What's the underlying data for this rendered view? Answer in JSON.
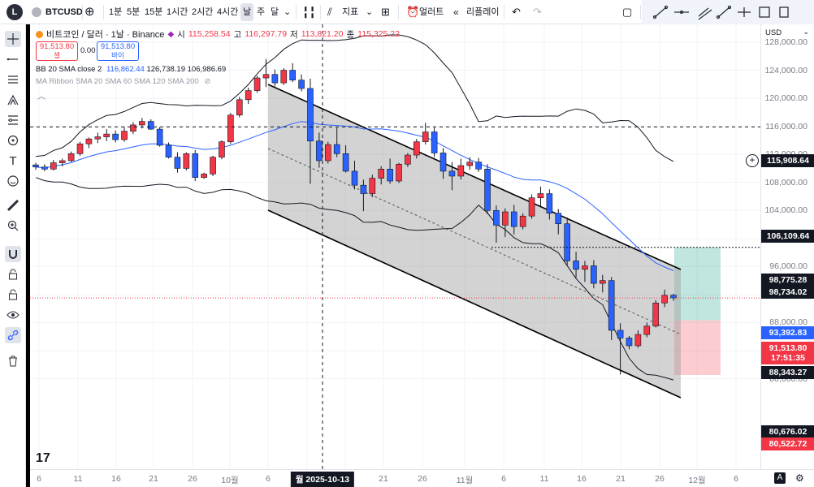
{
  "topbar": {
    "avatar_letter": "L",
    "symbol": "BTCUSD",
    "intervals": [
      "1분",
      "5분",
      "15분",
      "1시간",
      "2시간",
      "4시간",
      "날",
      "주",
      "달"
    ],
    "indicators_label": "지표",
    "alert_label": "얼러트",
    "replay_label": "리플레이"
  },
  "legend": {
    "title": "비트코인 / 달러 · 1날 · Binance",
    "open_label": "시",
    "open": "115,258.54",
    "high_label": "고",
    "high": "116,297.79",
    "low_label": "저",
    "low": "113,821.20",
    "close_label": "종",
    "close": "115,325.22",
    "sell_price": "91,513.80",
    "sell_label": "셀",
    "spread": "0.00",
    "buy_price": "91,513.80",
    "buy_label": "바이",
    "bb_name": "BB 20 SMA close 2",
    "bb_basis": "116,862.44",
    "bb_upper": "126,738.19",
    "bb_lower": "106,986.69",
    "ribbon_name": "MA Ribbon SMA 20 SMA 60 SMA 120 SMA 200"
  },
  "price_axis": {
    "currency": "USD",
    "ticks": [
      "128,000.00",
      "124,000.00",
      "120,000.00",
      "116,000.00",
      "112,000.00",
      "108,000.00",
      "104,000.00",
      "100,000.00",
      "96,000.00",
      "92,000.00",
      "88,000.00",
      "84,000.00",
      "80,000.00"
    ],
    "tags": [
      {
        "value": "115,908.64",
        "color": "#131722"
      },
      {
        "value": "106,109.64",
        "color": "#131722"
      },
      {
        "value": "98,775.28",
        "color": "#131722"
      },
      {
        "value": "98,734.02",
        "color": "#131722"
      },
      {
        "value": "93,392.83",
        "color": "#2962ff"
      },
      {
        "value": "91,513.80",
        "color": "#f23645"
      },
      {
        "value": "17:51:35",
        "color": "#f23645"
      },
      {
        "value": "88,343.27",
        "color": "#131722"
      },
      {
        "value": "80,676.02",
        "color": "#131722"
      },
      {
        "value": "80,522.72",
        "color": "#f23645"
      }
    ]
  },
  "time_axis": {
    "labels": [
      "6",
      "11",
      "16",
      "21",
      "26",
      "10월",
      "6",
      "월 2025-10-13",
      "21",
      "26",
      "11월",
      "6",
      "11",
      "16",
      "21",
      "26",
      "12월",
      "6"
    ],
    "settings_label": "A"
  },
  "colors": {
    "up": "#f23645",
    "down": "#2962ff",
    "channel": "#9e9e9e"
  },
  "chart_data": {
    "type": "candlestick",
    "symbol": "BTCUSD",
    "ylim": [
      78000,
      130000
    ],
    "candles": [
      [
        110500,
        110800,
        109800,
        110200
      ],
      [
        110200,
        110600,
        109600,
        109900
      ],
      [
        109900,
        111200,
        109700,
        110800
      ],
      [
        110800,
        111400,
        110300,
        111100
      ],
      [
        111100,
        112400,
        110900,
        112100
      ],
      [
        112100,
        113800,
        111800,
        113500
      ],
      [
        113500,
        114400,
        112900,
        114200
      ],
      [
        114200,
        115100,
        113600,
        114500
      ],
      [
        114500,
        115600,
        113900,
        114900
      ],
      [
        114900,
        115400,
        113700,
        114100
      ],
      [
        114100,
        115900,
        113800,
        115300
      ],
      [
        115300,
        116600,
        114900,
        116200
      ],
      [
        116200,
        117200,
        115700,
        116700
      ],
      [
        116700,
        117000,
        115500,
        115600
      ],
      [
        115600,
        115900,
        113100,
        113300
      ],
      [
        113300,
        113700,
        111400,
        111600
      ],
      [
        111600,
        112300,
        109400,
        110000
      ],
      [
        110000,
        112300,
        109700,
        112100
      ],
      [
        112100,
        112600,
        108200,
        108700
      ],
      [
        108700,
        109400,
        108500,
        109200
      ],
      [
        109200,
        111800,
        108900,
        111600
      ],
      [
        111600,
        114000,
        111300,
        113800
      ],
      [
        113800,
        117900,
        113500,
        117600
      ],
      [
        117600,
        120200,
        117300,
        119800
      ],
      [
        119800,
        121500,
        119200,
        121100
      ],
      [
        121100,
        123200,
        120800,
        122900
      ],
      [
        122900,
        125600,
        121600,
        123400
      ],
      [
        123400,
        124100,
        121700,
        122200
      ],
      [
        122200,
        124300,
        121900,
        124000
      ],
      [
        124000,
        125000,
        122300,
        122600
      ],
      [
        122600,
        123400,
        121000,
        121400
      ],
      [
        121400,
        122800,
        107800,
        113900
      ],
      [
        113900,
        115100,
        110100,
        111100
      ],
      [
        111100,
        113800,
        110700,
        113400
      ],
      [
        113400,
        115800,
        111600,
        112100
      ],
      [
        112100,
        113300,
        109400,
        109600
      ],
      [
        109600,
        111100,
        107000,
        107600
      ],
      [
        107600,
        108400,
        103900,
        106400
      ],
      [
        106400,
        109100,
        105900,
        108600
      ],
      [
        108600,
        110300,
        107700,
        109900
      ],
      [
        109900,
        111400,
        107800,
        108200
      ],
      [
        108200,
        110800,
        107900,
        110600
      ],
      [
        110600,
        112200,
        110200,
        111900
      ],
      [
        111900,
        114200,
        111400,
        113800
      ],
      [
        113800,
        116500,
        113400,
        115200
      ],
      [
        115200,
        115800,
        111600,
        112200
      ],
      [
        112200,
        112900,
        108500,
        109600
      ],
      [
        109600,
        110900,
        106900,
        108900
      ],
      [
        108900,
        111400,
        108400,
        110400
      ],
      [
        110400,
        111600,
        109800,
        110900
      ],
      [
        110900,
        111500,
        109500,
        109900
      ],
      [
        109900,
        110600,
        103500,
        104000
      ],
      [
        104000,
        104700,
        99400,
        101900
      ],
      [
        101900,
        104300,
        100200,
        103800
      ],
      [
        103800,
        104800,
        100600,
        101700
      ],
      [
        101700,
        103600,
        101300,
        103200
      ],
      [
        103200,
        106300,
        102800,
        105800
      ],
      [
        105800,
        107400,
        104600,
        106400
      ],
      [
        106400,
        107000,
        102700,
        103600
      ],
      [
        103600,
        104200,
        100600,
        102100
      ],
      [
        102100,
        103000,
        96200,
        96800
      ],
      [
        96800,
        98100,
        94400,
        95600
      ],
      [
        95600,
        96800,
        93800,
        96100
      ],
      [
        96100,
        96900,
        92900,
        93600
      ],
      [
        93600,
        94800,
        92300,
        94000
      ],
      [
        94000,
        94500,
        85500,
        86900
      ],
      [
        86900,
        87900,
        80600,
        85800
      ],
      [
        85800,
        86100,
        84200,
        84700
      ],
      [
        84700,
        86900,
        84400,
        86300
      ],
      [
        86300,
        88000,
        85900,
        87500
      ],
      [
        87500,
        91200,
        87300,
        90800
      ],
      [
        90800,
        92700,
        90200,
        91900
      ],
      [
        91900,
        92100,
        91100,
        91514
      ]
    ],
    "last_price": 91513.8,
    "channel": {
      "upper": [
        [
          330,
          104
        ],
        [
          838,
          332
        ]
      ],
      "lower": [
        [
          330,
          259
        ],
        [
          838,
          490
        ]
      ]
    },
    "long_position": {
      "entry": 88343.27,
      "target": 98775.28,
      "stop": 80522.72
    }
  }
}
